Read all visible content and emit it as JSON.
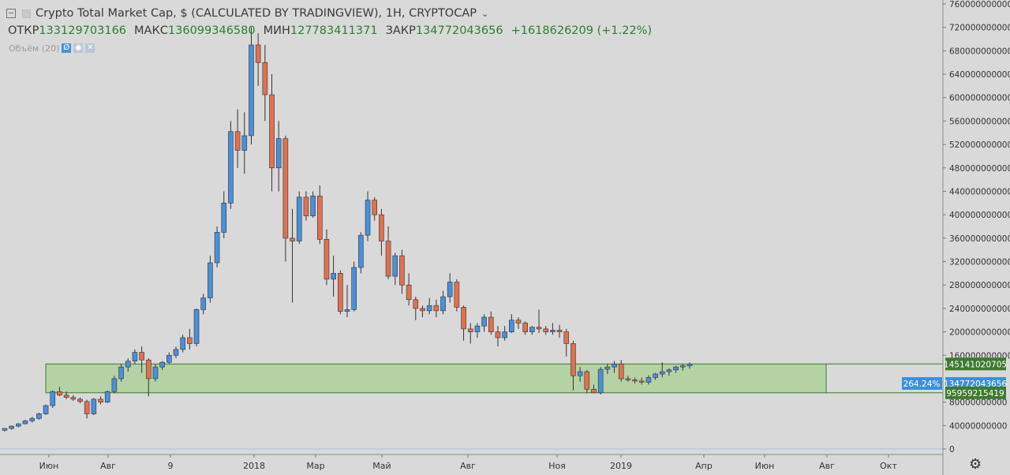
{
  "header": {
    "title": "Crypto Total Market Cap, $ (CALCULATED BY TRADINGVIEW), 1H, CRYPTOCAP",
    "open_label": "ОТКР",
    "open_value": "133129703166",
    "high_label": "МАКС",
    "high_value": "136099346580",
    "low_label": "МИН",
    "low_value": "127783411371",
    "close_label": "ЗАКР",
    "close_value": "134772043656",
    "change": "+1618626209 (+1.22%)",
    "volume_label": "Объём (20)",
    "volume_buttons": [
      "Ø",
      "◉",
      "✕"
    ]
  },
  "price_axis": {
    "ticks": [
      "760000000000",
      "720000000000",
      "680000000000",
      "640000000000",
      "600000000000",
      "560000000000",
      "520000000000",
      "480000000000",
      "440000000000",
      "400000000000",
      "360000000000",
      "320000000000",
      "280000000000",
      "240000000000",
      "200000000000",
      "160000000000",
      "80000000000",
      "40000000000",
      "0"
    ],
    "tags": {
      "upper": "145141020705",
      "current": "134772043656",
      "lower": "95959215419",
      "percent": "264.24%"
    }
  },
  "time_axis": {
    "labels": [
      "Июн",
      "Авг",
      "9",
      "2018",
      "Мар",
      "Май",
      "Авг",
      "Ноя",
      "2019",
      "Апр",
      "Июн",
      "Авг",
      "Окт"
    ]
  },
  "colors": {
    "up": "#4a90d9",
    "down": "#e0714f",
    "range_fill": "#a8cf93",
    "range_border": "#3e7a2e",
    "current_tag": "#3b8fe0"
  },
  "settings_icon": "gear-icon",
  "chart_data": {
    "type": "candlestick",
    "title": "Crypto Total Market Cap, $ (CALCULATED BY TRADINGVIEW), 1H, CRYPTOCAP",
    "ylim": [
      0,
      760000000000
    ],
    "grid": false,
    "range_box": {
      "upper": 145141020705,
      "lower": 95959215419,
      "percent": "264.24%"
    },
    "candles": [
      [
        32,
        36,
        30,
        35
      ],
      [
        35,
        40,
        33,
        39
      ],
      [
        39,
        44,
        37,
        43
      ],
      [
        43,
        50,
        42,
        48
      ],
      [
        48,
        55,
        45,
        52
      ],
      [
        52,
        62,
        50,
        60
      ],
      [
        60,
        76,
        58,
        74
      ],
      [
        74,
        100,
        70,
        98
      ],
      [
        98,
        106,
        90,
        92
      ],
      [
        92,
        98,
        85,
        88
      ],
      [
        88,
        92,
        82,
        85
      ],
      [
        85,
        88,
        78,
        81
      ],
      [
        81,
        84,
        52,
        60
      ],
      [
        60,
        87,
        58,
        85
      ],
      [
        85,
        90,
        76,
        80
      ],
      [
        80,
        100,
        78,
        98
      ],
      [
        98,
        125,
        95,
        120
      ],
      [
        120,
        145,
        115,
        140
      ],
      [
        140,
        155,
        132,
        150
      ],
      [
        150,
        170,
        145,
        165
      ],
      [
        165,
        175,
        130,
        152
      ],
      [
        152,
        155,
        90,
        120
      ],
      [
        120,
        145,
        115,
        140
      ],
      [
        140,
        150,
        135,
        148
      ],
      [
        148,
        165,
        145,
        160
      ],
      [
        160,
        175,
        155,
        170
      ],
      [
        170,
        195,
        165,
        190
      ],
      [
        190,
        205,
        170,
        180
      ],
      [
        180,
        240,
        175,
        238
      ],
      [
        238,
        265,
        230,
        258
      ],
      [
        258,
        330,
        250,
        318
      ],
      [
        318,
        380,
        310,
        370
      ],
      [
        370,
        440,
        360,
        420
      ],
      [
        420,
        560,
        410,
        542
      ],
      [
        542,
        580,
        480,
        510
      ],
      [
        510,
        575,
        470,
        535
      ],
      [
        535,
        720,
        520,
        690
      ],
      [
        690,
        710,
        620,
        660
      ],
      [
        660,
        690,
        560,
        605
      ],
      [
        605,
        640,
        440,
        480
      ],
      [
        480,
        560,
        440,
        530
      ],
      [
        530,
        535,
        320,
        360
      ],
      [
        360,
        410,
        250,
        355
      ],
      [
        355,
        440,
        350,
        430
      ],
      [
        430,
        440,
        390,
        398
      ],
      [
        398,
        440,
        395,
        432
      ],
      [
        432,
        450,
        350,
        358
      ],
      [
        358,
        375,
        280,
        290
      ],
      [
        290,
        330,
        260,
        300
      ],
      [
        300,
        305,
        230,
        235
      ],
      [
        235,
        280,
        225,
        238
      ],
      [
        238,
        320,
        235,
        310
      ],
      [
        310,
        370,
        300,
        365
      ],
      [
        365,
        440,
        355,
        425
      ],
      [
        425,
        430,
        390,
        400
      ],
      [
        400,
        410,
        330,
        355
      ],
      [
        355,
        380,
        290,
        295
      ],
      [
        295,
        335,
        280,
        330
      ],
      [
        330,
        340,
        265,
        280
      ],
      [
        280,
        300,
        245,
        255
      ],
      [
        255,
        260,
        220,
        240
      ],
      [
        240,
        245,
        225,
        236
      ],
      [
        236,
        258,
        230,
        245
      ],
      [
        245,
        255,
        225,
        236
      ],
      [
        236,
        270,
        230,
        260
      ],
      [
        260,
        300,
        250,
        285
      ],
      [
        285,
        290,
        235,
        242
      ],
      [
        242,
        245,
        185,
        205
      ],
      [
        205,
        215,
        180,
        200
      ],
      [
        200,
        215,
        190,
        210
      ],
      [
        210,
        230,
        200,
        225
      ],
      [
        225,
        235,
        195,
        200
      ],
      [
        200,
        210,
        175,
        190
      ],
      [
        190,
        210,
        185,
        200
      ],
      [
        200,
        230,
        198,
        220
      ],
      [
        220,
        225,
        205,
        215
      ],
      [
        215,
        218,
        195,
        200
      ],
      [
        200,
        210,
        195,
        208
      ],
      [
        208,
        238,
        198,
        205
      ],
      [
        205,
        210,
        195,
        200
      ],
      [
        200,
        215,
        195,
        203
      ],
      [
        203,
        212,
        190,
        200
      ],
      [
        200,
        205,
        158,
        180
      ],
      [
        180,
        185,
        100,
        125
      ],
      [
        125,
        140,
        115,
        132
      ],
      [
        132,
        135,
        95,
        102
      ],
      [
        102,
        110,
        95,
        96
      ],
      [
        96,
        140,
        93,
        136
      ],
      [
        136,
        145,
        128,
        140
      ],
      [
        140,
        150,
        130,
        145
      ],
      [
        145,
        152,
        115,
        120
      ],
      [
        120,
        125,
        115,
        118
      ],
      [
        118,
        122,
        112,
        116
      ],
      [
        116,
        122,
        110,
        114
      ],
      [
        114,
        126,
        110,
        122
      ],
      [
        122,
        130,
        118,
        128
      ],
      [
        128,
        148,
        122,
        132
      ],
      [
        132,
        138,
        125,
        135
      ],
      [
        135,
        142,
        130,
        140
      ],
      [
        140,
        145,
        134,
        142
      ],
      [
        142,
        148,
        137,
        145
      ]
    ]
  }
}
